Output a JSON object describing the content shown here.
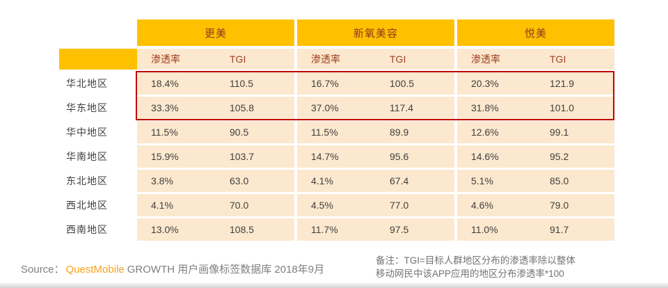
{
  "table": {
    "apps": [
      "更美",
      "新氧美容",
      "悦美"
    ],
    "sub_headers": [
      "渗透率",
      "TGI"
    ],
    "rows": [
      {
        "region": "华北地区",
        "values": [
          "18.4%",
          "110.5",
          "16.7%",
          "100.5",
          "20.3%",
          "121.9"
        ],
        "highlighted": true
      },
      {
        "region": "华东地区",
        "values": [
          "33.3%",
          "105.8",
          "37.0%",
          "117.4",
          "31.8%",
          "101.0"
        ],
        "highlighted": true
      },
      {
        "region": "华中地区",
        "values": [
          "11.5%",
          "90.5",
          "11.5%",
          "89.9",
          "12.6%",
          "99.1"
        ],
        "highlighted": false
      },
      {
        "region": "华南地区",
        "values": [
          "15.9%",
          "103.7",
          "14.7%",
          "95.6",
          "14.6%",
          "95.2"
        ],
        "highlighted": false
      },
      {
        "region": "东北地区",
        "values": [
          "3.8%",
          "63.0",
          "4.1%",
          "67.4",
          "5.1%",
          "85.0"
        ],
        "highlighted": false
      },
      {
        "region": "西北地区",
        "values": [
          "4.1%",
          "70.0",
          "4.5%",
          "77.0",
          "4.6%",
          "79.0"
        ],
        "highlighted": false
      },
      {
        "region": "西南地区",
        "values": [
          "13.0%",
          "108.5",
          "11.7%",
          "97.5",
          "11.0%",
          "91.7"
        ],
        "highlighted": false
      }
    ]
  },
  "chart_data": {
    "type": "table",
    "categories": [
      "华北地区",
      "华东地区",
      "华中地区",
      "华南地区",
      "东北地区",
      "西北地区",
      "西南地区"
    ],
    "column_groups": [
      "更美",
      "新氧美容",
      "悦美"
    ],
    "columns": [
      "渗透率",
      "TGI",
      "渗透率",
      "TGI",
      "渗透率",
      "TGI"
    ],
    "series": [
      {
        "name": "更美-渗透率(%)",
        "values": [
          18.4,
          33.3,
          11.5,
          15.9,
          3.8,
          4.1,
          13.0
        ]
      },
      {
        "name": "更美-TGI",
        "values": [
          110.5,
          105.8,
          90.5,
          103.7,
          63.0,
          70.0,
          108.5
        ]
      },
      {
        "name": "新氧美容-渗透率(%)",
        "values": [
          16.7,
          37.0,
          11.5,
          14.7,
          4.1,
          4.5,
          11.7
        ]
      },
      {
        "name": "新氧美容-TGI",
        "values": [
          100.5,
          117.4,
          89.9,
          95.6,
          67.4,
          77.0,
          97.5
        ]
      },
      {
        "name": "悦美-渗透率(%)",
        "values": [
          20.3,
          31.8,
          12.6,
          14.6,
          5.1,
          4.6,
          11.0
        ]
      },
      {
        "name": "悦美-TGI",
        "values": [
          121.9,
          101.0,
          99.1,
          95.2,
          85.0,
          79.0,
          91.7
        ]
      }
    ],
    "highlighted_rows": [
      "华北地区",
      "华东地区"
    ]
  },
  "footer": {
    "source_prefix": "Source：",
    "source_brand": "QuestMobile",
    "source_suffix": "GROWTH 用户画像标签数据库 2018年9月",
    "note_line1": "备注：TGI=目标人群地区分布的渗透率除以整体",
    "note_line2": "移动网民中该APP应用的地区分布渗透率*100"
  },
  "colors": {
    "header_gold": "#FFC000",
    "cell_peach": "#FCE8CE",
    "header_text": "#8E3A1E",
    "data_text": "#3f3f3f",
    "highlight_red": "#C00000",
    "brand_orange": "#F9A11B",
    "footer_gray": "#7f7f7f"
  }
}
